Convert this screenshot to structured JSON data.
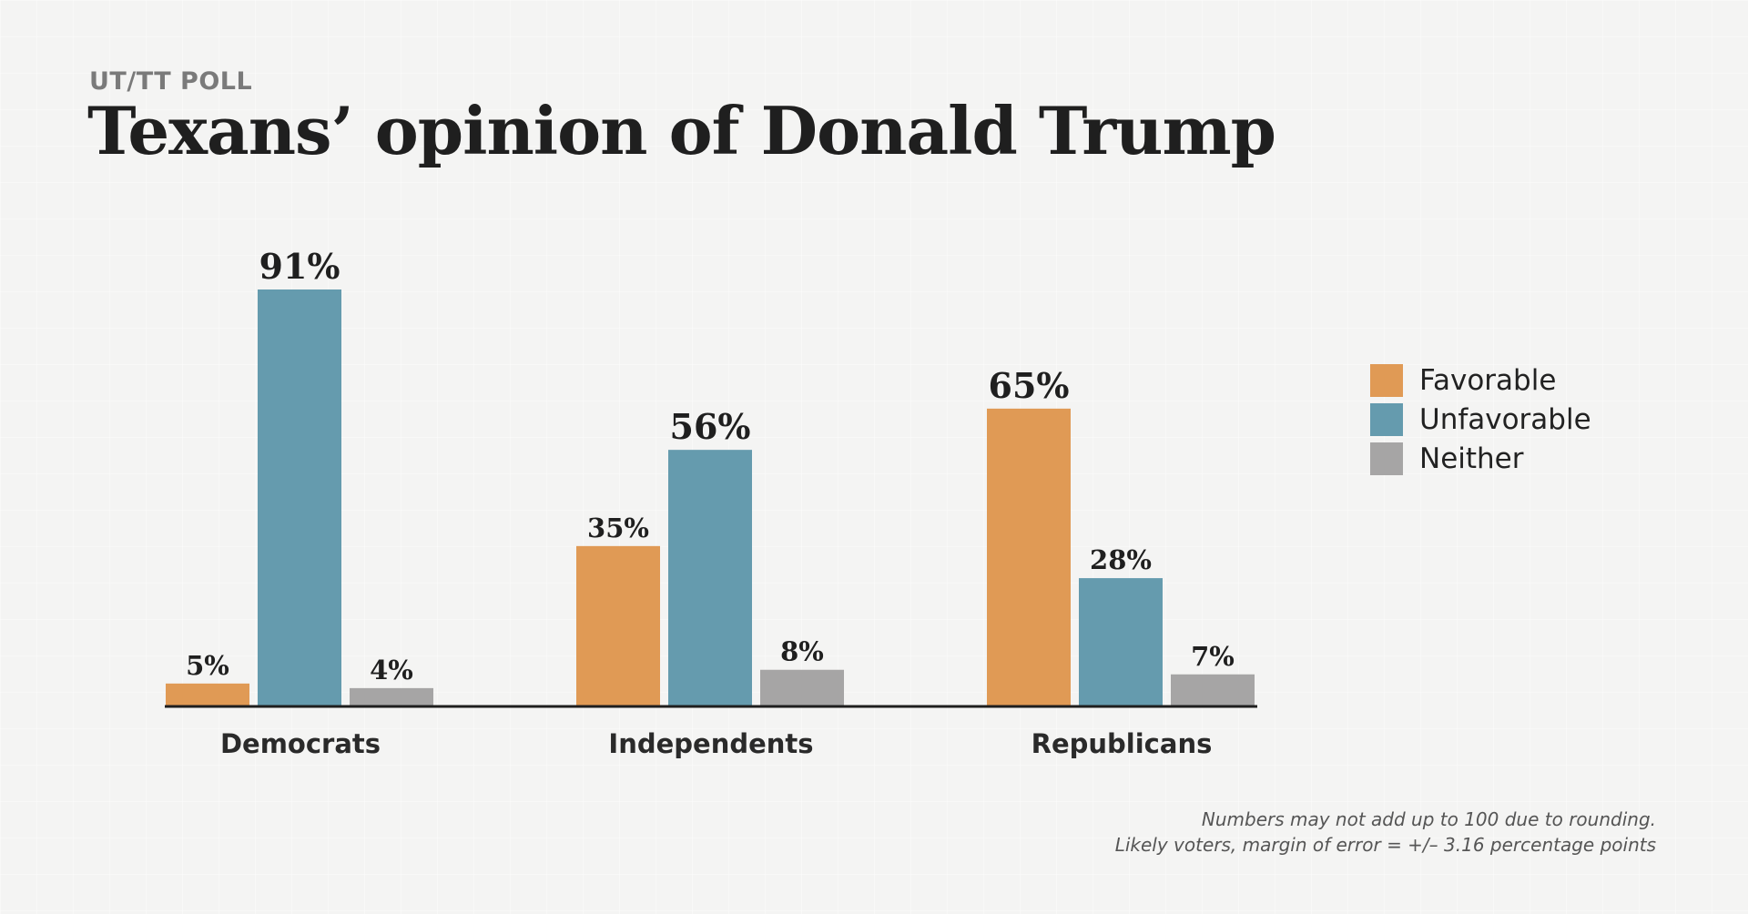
{
  "kicker": "UT/TT POLL",
  "title": "Texans’ opinion of Donald Trump",
  "legend": [
    {
      "label": "Favorable",
      "color": "#e09a55"
    },
    {
      "label": "Unfavorable",
      "color": "#659bae"
    },
    {
      "label": "Neither",
      "color": "#a6a5a5"
    }
  ],
  "footnote": {
    "line1": "Numbers may not add up to 100 due to rounding.",
    "line2": "Likely voters, margin of error = +/– 3.16 percentage points"
  },
  "chart_data": {
    "type": "bar",
    "title": "Texans’ opinion of Donald Trump",
    "categories": [
      "Democrats",
      "Independents",
      "Republicans"
    ],
    "series": [
      {
        "name": "Favorable",
        "values": [
          5,
          35,
          65
        ],
        "labels": [
          "5%",
          "35%",
          "65%"
        ],
        "color": "#e09a55"
      },
      {
        "name": "Unfavorable",
        "values": [
          91,
          56,
          28
        ],
        "labels": [
          "91%",
          "56%",
          "28%"
        ],
        "color": "#659bae"
      },
      {
        "name": "Neither",
        "values": [
          4,
          8,
          7
        ],
        "labels": [
          "4%",
          "8%",
          "7%"
        ],
        "color": "#a6a5a5"
      }
    ],
    "ylim": [
      0,
      100
    ],
    "xlabel": "",
    "ylabel": "",
    "grid": false,
    "legend_position": "right"
  }
}
